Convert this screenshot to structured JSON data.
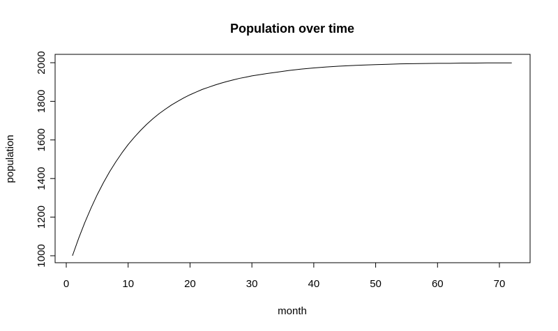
{
  "chart_data": {
    "type": "line",
    "title": "Population over time",
    "xlabel": "month",
    "ylabel": "population",
    "xlim": [
      1,
      72
    ],
    "ylim": [
      1000,
      2000
    ],
    "x_ticks": [
      0,
      10,
      20,
      30,
      40,
      50,
      60,
      70
    ],
    "y_ticks": [
      1000,
      1200,
      1400,
      1600,
      1800,
      2000
    ],
    "x_tick_labels": [
      "0",
      "10",
      "20",
      "30",
      "40",
      "50",
      "60",
      "70"
    ],
    "y_tick_labels": [
      "1000",
      "1200",
      "1400",
      "1600",
      "1800",
      "2000"
    ],
    "grid": false,
    "legend": "none",
    "line_color": "#000000",
    "series": [
      {
        "x": [
          1,
          2,
          3,
          4,
          5,
          6,
          7,
          8,
          9,
          10,
          11,
          12,
          13,
          14,
          15,
          16,
          17,
          18,
          19,
          20,
          21,
          22,
          23,
          24,
          25,
          26,
          27,
          28,
          29,
          30,
          32,
          34,
          36,
          38,
          40,
          42,
          44,
          46,
          48,
          50,
          52,
          54,
          56,
          58,
          60,
          62,
          64,
          66,
          68,
          70,
          72
        ],
        "values": [
          1000,
          1090,
          1172,
          1247,
          1316,
          1378,
          1435,
          1486,
          1533,
          1576,
          1614,
          1649,
          1681,
          1710,
          1736,
          1759,
          1781,
          1800,
          1818,
          1834,
          1848,
          1862,
          1873,
          1884,
          1894,
          1903,
          1911,
          1919,
          1925,
          1932,
          1942,
          1951,
          1960,
          1967,
          1973,
          1978,
          1982,
          1985,
          1988,
          1990,
          1992,
          1994,
          1995,
          1996,
          1997,
          1997,
          1998,
          1998,
          1999,
          1999,
          1999
        ]
      }
    ]
  }
}
